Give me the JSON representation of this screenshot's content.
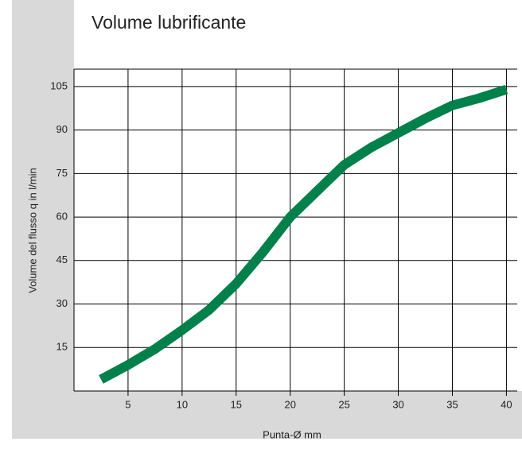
{
  "chart_data": {
    "type": "line",
    "title": "Volume lubrificante",
    "x_label": "Punta-Ø mm",
    "y_label": "Volume del flusso q in l/min",
    "x": [
      2.5,
      5,
      7.5,
      10,
      12.5,
      15,
      17.5,
      20,
      22.5,
      25,
      27.5,
      30,
      32.5,
      35,
      37.5,
      40
    ],
    "series": [
      {
        "name": "Volume",
        "color": "#00804a",
        "values": [
          4,
          9,
          14.5,
          21,
          28,
          37,
          48,
          60,
          69,
          78,
          84,
          89,
          94,
          98.5,
          101,
          104
        ]
      }
    ],
    "xlim": [
      0,
      41
    ],
    "ylim": [
      0,
      111
    ],
    "xticks": [
      5,
      10,
      15,
      20,
      25,
      30,
      35,
      40
    ],
    "yticks": [
      15,
      30,
      45,
      60,
      75,
      90,
      105
    ],
    "grid": true
  }
}
